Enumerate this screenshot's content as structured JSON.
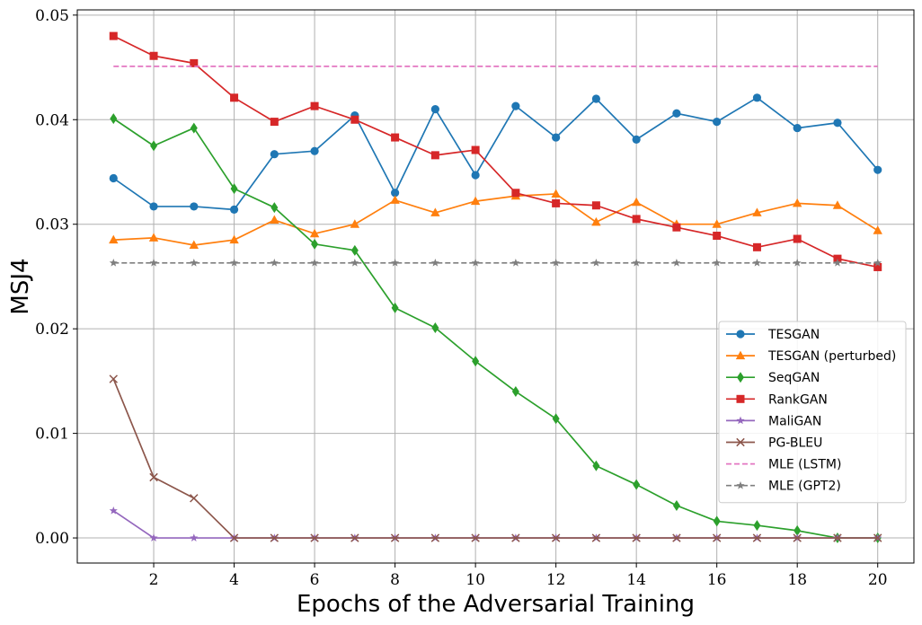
{
  "chart_data": {
    "type": "line",
    "title": "",
    "xlabel": "Epochs of the Adversarial Training",
    "ylabel": "MSJ4",
    "xlim": [
      0.1,
      20.9
    ],
    "ylim": [
      -0.0024,
      0.0505
    ],
    "xticks": [
      2,
      4,
      6,
      8,
      10,
      12,
      14,
      16,
      18,
      20
    ],
    "xtick_labels": [
      "2",
      "4",
      "6",
      "8",
      "10",
      "12",
      "14",
      "16",
      "18",
      "20"
    ],
    "yticks": [
      0,
      0.01,
      0.02,
      0.03,
      0.04,
      0.05
    ],
    "ytick_labels": [
      "0.00",
      "0.01",
      "0.02",
      "0.03",
      "0.04",
      "0.05"
    ],
    "grid": true,
    "legend_position": "lower-right",
    "x": [
      1,
      2,
      3,
      4,
      5,
      6,
      7,
      8,
      9,
      10,
      11,
      12,
      13,
      14,
      15,
      16,
      17,
      18,
      19,
      20
    ],
    "series": [
      {
        "name": "TESGAN",
        "color": "#1f77b4",
        "marker": "circle",
        "dashed": false,
        "values": [
          0.0344,
          0.0317,
          0.0317,
          0.0314,
          0.0367,
          0.037,
          0.0404,
          0.033,
          0.041,
          0.0347,
          0.0413,
          0.0383,
          0.042,
          0.0381,
          0.0406,
          0.0398,
          0.0421,
          0.0392,
          0.0397,
          0.0352
        ]
      },
      {
        "name": "TESGAN (perturbed)",
        "color": "#ff7f0e",
        "marker": "triangle",
        "dashed": false,
        "values": [
          0.0285,
          0.0287,
          0.028,
          0.0285,
          0.0304,
          0.0291,
          0.03,
          0.0323,
          0.0311,
          0.0322,
          0.0327,
          0.0329,
          0.0302,
          0.0321,
          0.03,
          0.03,
          0.0311,
          0.032,
          0.0318,
          0.0294
        ]
      },
      {
        "name": "SeqGAN",
        "color": "#2ca02c",
        "marker": "diamond",
        "dashed": false,
        "values": [
          0.0401,
          0.0375,
          0.0392,
          0.0334,
          0.0316,
          0.0281,
          0.0275,
          0.022,
          0.0201,
          0.0169,
          0.014,
          0.0114,
          0.0069,
          0.0051,
          0.0031,
          0.0016,
          0.0012,
          0.0007,
          0.0,
          0.0
        ]
      },
      {
        "name": "RankGAN",
        "color": "#d62728",
        "marker": "square",
        "dashed": false,
        "values": [
          0.048,
          0.0461,
          0.0454,
          0.0421,
          0.0398,
          0.0413,
          0.04,
          0.0383,
          0.0366,
          0.0371,
          0.033,
          0.032,
          0.0318,
          0.0305,
          0.0297,
          0.0289,
          0.0278,
          0.0286,
          0.0267,
          0.0259
        ]
      },
      {
        "name": "MaliGAN",
        "color": "#9467bd",
        "marker": "star",
        "dashed": false,
        "values": [
          0.0026,
          0.0,
          0.0,
          0.0,
          0.0,
          0.0,
          0.0,
          0.0,
          0.0,
          0.0,
          0.0,
          0.0,
          0.0,
          0.0,
          0.0,
          0.0,
          0.0,
          0.0,
          0.0,
          0.0
        ]
      },
      {
        "name": "PG-BLEU",
        "color": "#8c564b",
        "marker": "x",
        "dashed": false,
        "values": [
          0.0152,
          0.0058,
          0.0038,
          0.0,
          0.0,
          0.0,
          0.0,
          0.0,
          0.0,
          0.0,
          0.0,
          0.0,
          0.0,
          0.0,
          0.0,
          0.0,
          0.0,
          0.0,
          0.0,
          0.0
        ]
      },
      {
        "name": "MLE (LSTM)",
        "color": "#e377c2",
        "marker": "none",
        "dashed": true,
        "values": [
          0.0451,
          0.0451,
          0.0451,
          0.0451,
          0.0451,
          0.0451,
          0.0451,
          0.0451,
          0.0451,
          0.0451,
          0.0451,
          0.0451,
          0.0451,
          0.0451,
          0.0451,
          0.0451,
          0.0451,
          0.0451,
          0.0451,
          0.0451
        ]
      },
      {
        "name": "MLE (GPT2)",
        "color": "#7f7f7f",
        "marker": "star",
        "dashed": true,
        "values": [
          0.0263,
          0.0263,
          0.0263,
          0.0263,
          0.0263,
          0.0263,
          0.0263,
          0.0263,
          0.0263,
          0.0263,
          0.0263,
          0.0263,
          0.0263,
          0.0263,
          0.0263,
          0.0263,
          0.0263,
          0.0263,
          0.0263,
          0.0263
        ]
      }
    ]
  }
}
